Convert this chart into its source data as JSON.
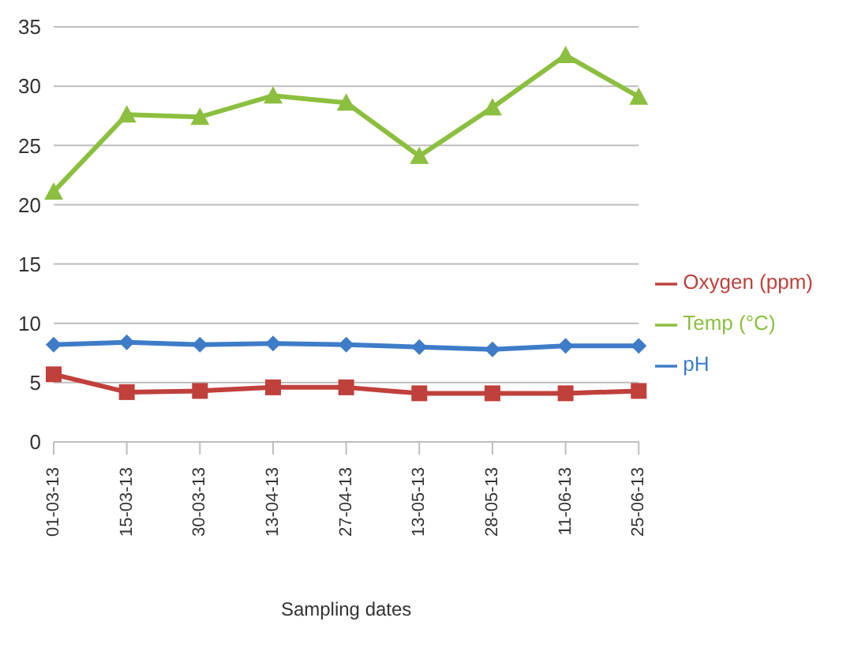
{
  "chart_data": {
    "type": "line",
    "xlabel": "Sampling dates",
    "categories": [
      "01-03-13",
      "15-03-13",
      "30-03-13",
      "13-04-13",
      "27-04-13",
      "13-05-13",
      "28-05-13",
      "11-06-13",
      "25-06-13"
    ],
    "series": [
      {
        "name": "pH",
        "color": "#3e7cc8",
        "marker": "diamond",
        "values": [
          8.2,
          8.4,
          8.2,
          8.3,
          8.2,
          8.0,
          7.8,
          8.1,
          8.1
        ]
      },
      {
        "name": "Oxygen (ppm)",
        "color": "#c0403c",
        "marker": "square",
        "values": [
          5.7,
          4.2,
          4.3,
          4.6,
          4.6,
          4.1,
          4.1,
          4.1,
          4.3
        ]
      },
      {
        "name": "Temp (°C)",
        "color": "#8cbf3f",
        "marker": "triangle",
        "values": [
          21.1,
          27.6,
          27.4,
          29.2,
          28.6,
          24.1,
          28.2,
          32.6,
          29.1
        ]
      }
    ],
    "ylim": [
      0,
      35
    ],
    "yticks": [
      0,
      5,
      10,
      15,
      20,
      25,
      30,
      35
    ],
    "grid": "y",
    "legend": "right"
  }
}
